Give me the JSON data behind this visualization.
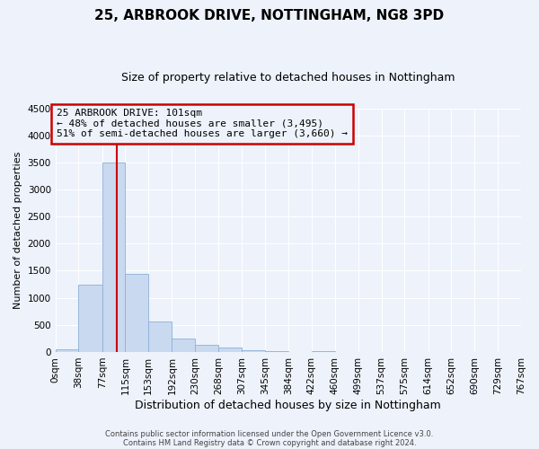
{
  "title": "25, ARBROOK DRIVE, NOTTINGHAM, NG8 3PD",
  "subtitle": "Size of property relative to detached houses in Nottingham",
  "xlabel": "Distribution of detached houses by size in Nottingham",
  "ylabel": "Number of detached properties",
  "bin_labels": [
    "0sqm",
    "38sqm",
    "77sqm",
    "115sqm",
    "153sqm",
    "192sqm",
    "230sqm",
    "268sqm",
    "307sqm",
    "345sqm",
    "384sqm",
    "422sqm",
    "460sqm",
    "499sqm",
    "537sqm",
    "575sqm",
    "614sqm",
    "652sqm",
    "690sqm",
    "729sqm",
    "767sqm"
  ],
  "bin_left_edges": [
    0,
    38,
    77,
    115,
    153,
    192,
    230,
    268,
    307,
    345,
    384,
    422,
    460,
    499,
    537,
    575,
    614,
    652,
    690,
    729
  ],
  "bin_widths": [
    38,
    39,
    38,
    38,
    39,
    38,
    38,
    39,
    38,
    39,
    38,
    38,
    39,
    38,
    38,
    39,
    38,
    38,
    39,
    38
  ],
  "bar_heights": [
    50,
    1250,
    3490,
    1450,
    570,
    240,
    130,
    75,
    25,
    10,
    5,
    20,
    3,
    0,
    0,
    0,
    0,
    0,
    0,
    0
  ],
  "bar_color": "#c9d9ef",
  "bar_edge_color": "#8cb0d8",
  "vline_color": "#cc0000",
  "vline_x": 101,
  "ylim": [
    0,
    4500
  ],
  "yticks": [
    0,
    500,
    1000,
    1500,
    2000,
    2500,
    3000,
    3500,
    4000,
    4500
  ],
  "xlim_left": 0,
  "xlim_right": 767,
  "annotation_line0": "25 ARBROOK DRIVE: 101sqm",
  "annotation_line1": "← 48% of detached houses are smaller (3,495)",
  "annotation_line2": "51% of semi-detached houses are larger (3,660) →",
  "annotation_box_color": "#cc0000",
  "footer_line1": "Contains HM Land Registry data © Crown copyright and database right 2024.",
  "footer_line2": "Contains public sector information licensed under the Open Government Licence v3.0.",
  "background_color": "#edf2fb",
  "grid_color": "#ffffff",
  "title_fontsize": 11,
  "subtitle_fontsize": 9,
  "tick_fontsize": 7.5,
  "ylabel_fontsize": 8,
  "xlabel_fontsize": 9
}
